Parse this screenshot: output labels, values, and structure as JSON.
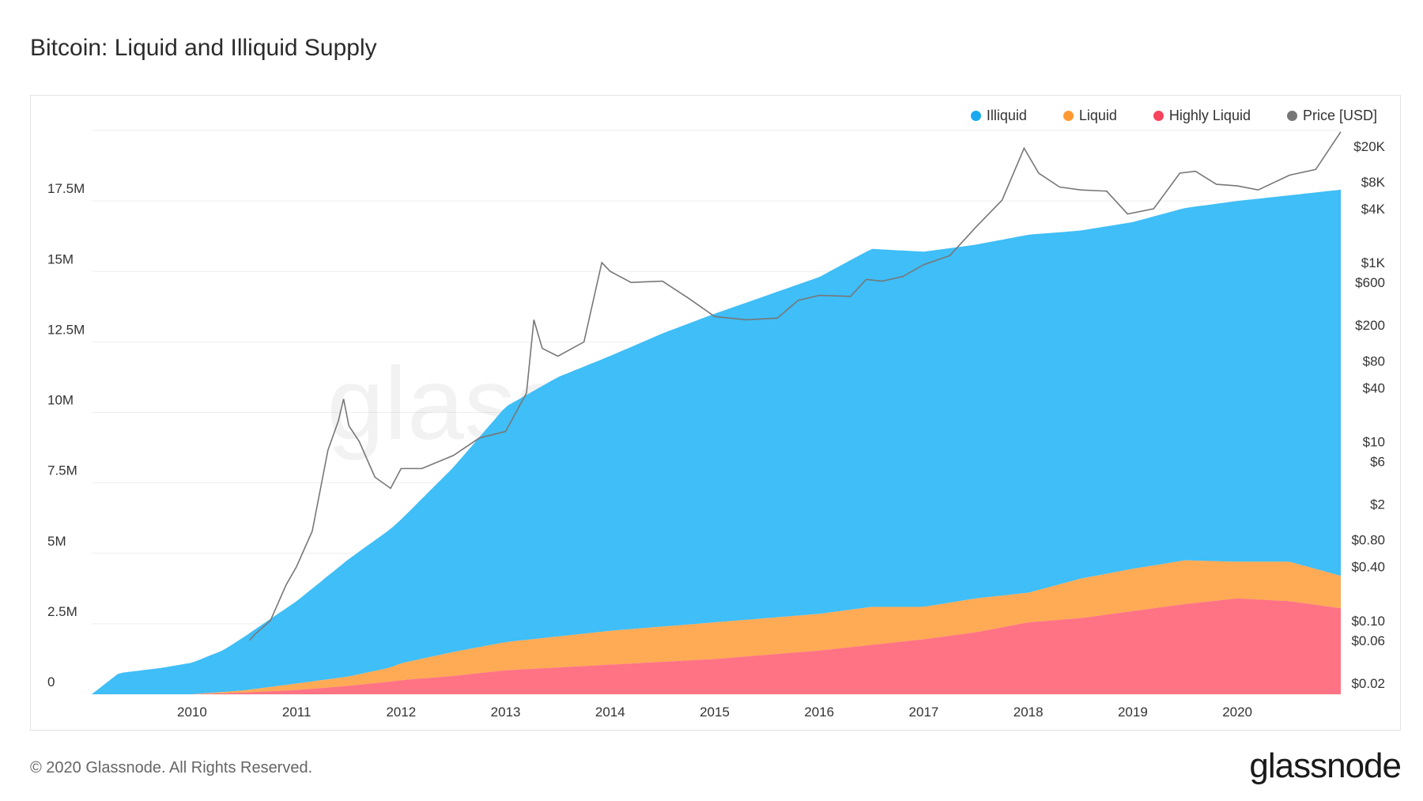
{
  "title": "Bitcoin: Liquid and Illiquid Supply",
  "footer": "© 2020 Glassnode. All Rights Reserved.",
  "brand": "glassnode",
  "watermark": "glassnode",
  "colors": {
    "illiquid": "#3fbef7",
    "liquid": "#ffaa55",
    "highly_liquid": "#ff7384",
    "price": "#777777",
    "grid": "#eeeeee",
    "axis_text": "#333333"
  },
  "chart_data": {
    "type": "area",
    "stacked": true,
    "legend_position": "top-right",
    "grid": true,
    "x_ticks": [
      "2010",
      "2011",
      "2012",
      "2013",
      "2014",
      "2015",
      "2016",
      "2017",
      "2018",
      "2019",
      "2020"
    ],
    "x_range": [
      2009.04,
      2020.99
    ],
    "y_left": {
      "range": [
        0,
        20000000
      ],
      "ticks": [
        0,
        2500000,
        5000000,
        7500000,
        10000000,
        12500000,
        15000000,
        17500000
      ],
      "tick_labels": [
        "0",
        "2.5M",
        "5M",
        "7.5M",
        "10M",
        "12.5M",
        "15M",
        "17.5M"
      ]
    },
    "y_right": {
      "scale": "log",
      "range": [
        0.015,
        30000
      ],
      "ticks": [
        0.02,
        0.06,
        0.1,
        0.4,
        0.8,
        2,
        6,
        10,
        40,
        80,
        200,
        600,
        1000,
        4000,
        8000,
        20000
      ],
      "tick_labels": [
        "$0.02",
        "$0.06",
        "$0.10",
        "$0.40",
        "$0.80",
        "$2",
        "$6",
        "$10",
        "$40",
        "$80",
        "$200",
        "$600",
        "$1K",
        "$4K",
        "$8K",
        "$20K"
      ]
    },
    "series": [
      {
        "name": "Highly Liquid",
        "kind": "stacked-area",
        "x": [
          2009.04,
          2010.0,
          2010.5,
          2011.0,
          2011.5,
          2011.9,
          2012.0,
          2012.5,
          2013.0,
          2013.5,
          2014.0,
          2014.5,
          2015.0,
          2015.5,
          2016.0,
          2016.5,
          2017.0,
          2017.5,
          2018.0,
          2018.5,
          2019.0,
          2019.5,
          2020.0,
          2020.5,
          2020.99
        ],
        "values": [
          0,
          0,
          60000,
          150000,
          300000,
          450000,
          500000,
          650000,
          850000,
          950000,
          1050000,
          1150000,
          1250000,
          1400000,
          1550000,
          1750000,
          1950000,
          2200000,
          2550000,
          2700000,
          2950000,
          3200000,
          3400000,
          3300000,
          3050000
        ]
      },
      {
        "name": "Liquid",
        "kind": "stacked-area",
        "x": [
          2009.04,
          2010.0,
          2010.5,
          2011.0,
          2011.5,
          2011.9,
          2012.0,
          2012.5,
          2013.0,
          2013.5,
          2014.0,
          2014.5,
          2015.0,
          2015.5,
          2016.0,
          2016.5,
          2017.0,
          2017.5,
          2018.0,
          2018.5,
          2019.0,
          2019.5,
          2020.0,
          2020.5,
          2020.99
        ],
        "values": [
          0,
          0,
          80000,
          230000,
          330000,
          500000,
          600000,
          850000,
          1000000,
          1100000,
          1200000,
          1250000,
          1300000,
          1300000,
          1300000,
          1350000,
          1150000,
          1200000,
          1050000,
          1400000,
          1500000,
          1550000,
          1300000,
          1400000,
          1150000
        ]
      },
      {
        "name": "Illiquid",
        "kind": "stacked-area",
        "x": [
          2009.04,
          2009.3,
          2009.7,
          2010.0,
          2010.3,
          2010.6,
          2011.0,
          2011.5,
          2012.0,
          2012.5,
          2013.0,
          2013.5,
          2014.0,
          2014.5,
          2015.0,
          2015.5,
          2016.0,
          2016.5,
          2017.0,
          2017.5,
          2018.0,
          2018.5,
          2019.0,
          2019.5,
          2020.0,
          2020.5,
          2020.99
        ],
        "values": [
          0,
          750000,
          930000,
          1120000,
          1480000,
          2110000,
          2920000,
          4170000,
          5100000,
          6550000,
          8350000,
          9200000,
          9750000,
          10400000,
          10950000,
          11450000,
          11950000,
          12700000,
          12600000,
          12550000,
          12700000,
          12350000,
          12300000,
          12500000,
          12800000,
          13000000,
          13700000
        ]
      },
      {
        "name": "Price [USD]",
        "kind": "line",
        "axis": "right",
        "x": [
          2010.55,
          2010.6,
          2010.75,
          2010.9,
          2011.0,
          2011.15,
          2011.3,
          2011.4,
          2011.45,
          2011.5,
          2011.6,
          2011.75,
          2011.9,
          2012.0,
          2012.2,
          2012.5,
          2012.75,
          2013.0,
          2013.2,
          2013.27,
          2013.35,
          2013.5,
          2013.75,
          2013.92,
          2014.0,
          2014.2,
          2014.5,
          2014.75,
          2015.0,
          2015.3,
          2015.6,
          2015.8,
          2016.0,
          2016.3,
          2016.45,
          2016.6,
          2016.8,
          2017.0,
          2017.25,
          2017.5,
          2017.75,
          2017.96,
          2018.1,
          2018.3,
          2018.5,
          2018.75,
          2018.95,
          2019.2,
          2019.45,
          2019.6,
          2019.8,
          2020.0,
          2020.2,
          2020.5,
          2020.75,
          2020.99
        ],
        "values": [
          0.06,
          0.07,
          0.1,
          0.25,
          0.4,
          1,
          8,
          17,
          30,
          15,
          10,
          4,
          3,
          5,
          5,
          7,
          11,
          13,
          35,
          230,
          110,
          90,
          130,
          1000,
          800,
          600,
          620,
          400,
          250,
          230,
          240,
          380,
          430,
          420,
          650,
          620,
          700,
          950,
          1200,
          2500,
          5000,
          19000,
          10000,
          7000,
          6500,
          6300,
          3500,
          4000,
          10000,
          10500,
          7500,
          7200,
          6500,
          9500,
          11000,
          29000
        ]
      }
    ]
  }
}
